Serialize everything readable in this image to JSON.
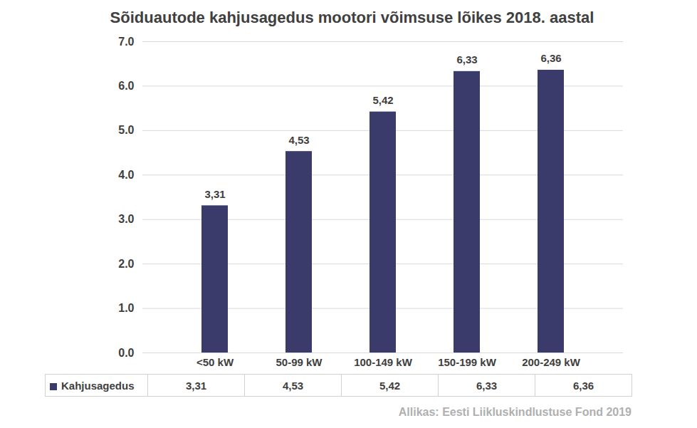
{
  "chart_data": {
    "type": "bar",
    "title": "Sõiduautode kahjusagedus mootori võimsuse lõikes 2018. aastal",
    "categories": [
      "<50 kW",
      "50-99 kW",
      "100-149 kW",
      "150-199 kW",
      "200-249 kW"
    ],
    "series": [
      {
        "name": "Kahjusagedus",
        "color": "#3b3b6b",
        "values": [
          3.31,
          4.53,
          5.42,
          6.33,
          6.36
        ],
        "value_labels": [
          "3,31",
          "4,53",
          "5,42",
          "6,33",
          "6,36"
        ]
      }
    ],
    "ylim": [
      0,
      7
    ],
    "yticks": [
      0,
      1,
      2,
      3,
      4,
      5,
      6,
      7
    ],
    "grid": true,
    "data_labels": true,
    "legend": "bottom",
    "source": "Allikas: Eesti Liikluskindlustuse Fond 2019"
  }
}
